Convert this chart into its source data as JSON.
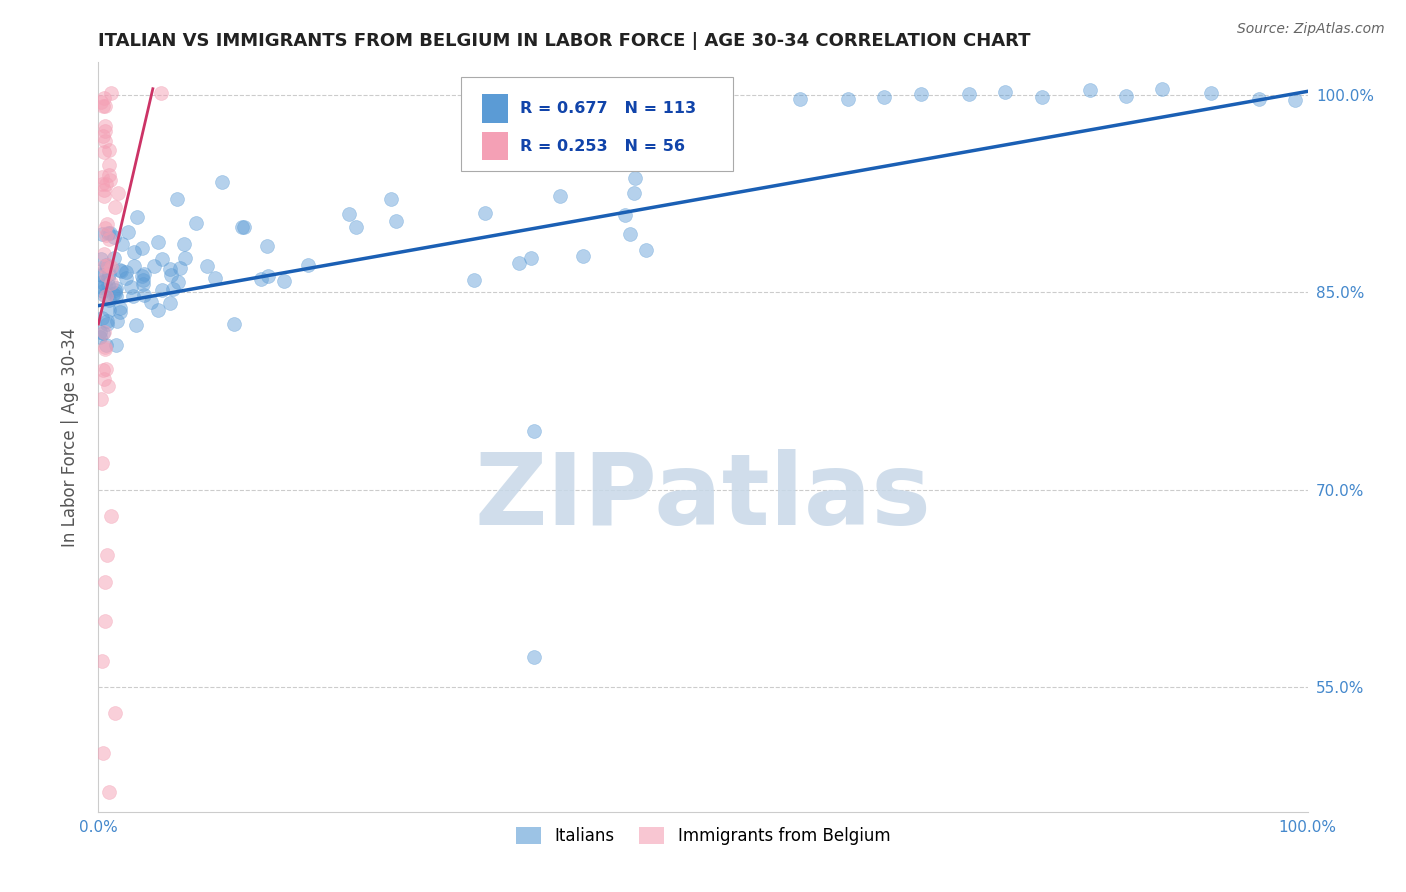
{
  "title": "ITALIAN VS IMMIGRANTS FROM BELGIUM IN LABOR FORCE | AGE 30-34 CORRELATION CHART",
  "source": "Source: ZipAtlas.com",
  "ylabel": "In Labor Force | Age 30-34",
  "xlim": [
    0.0,
    1.0
  ],
  "ylim": [
    0.455,
    1.025
  ],
  "yticks": [
    0.55,
    0.7,
    0.85,
    1.0
  ],
  "ytick_labels": [
    "55.0%",
    "70.0%",
    "85.0%",
    "100.0%"
  ],
  "xticks": [
    0.0,
    0.1,
    0.2,
    0.3,
    0.4,
    0.5,
    0.6,
    0.7,
    0.8,
    0.9,
    1.0
  ],
  "xtick_labels": [
    "0.0%",
    "",
    "",
    "",
    "",
    "",
    "",
    "",
    "",
    "",
    "100.0%"
  ],
  "blue_color": "#5b9bd5",
  "pink_color": "#f4a0b5",
  "blue_line_color": "#1a5fb4",
  "pink_line_color": "#cc3366",
  "blue_R": 0.677,
  "blue_N": 113,
  "pink_R": 0.253,
  "pink_N": 56,
  "watermark": "ZIPatlas",
  "watermark_color": "#c8d8e8",
  "legend_italians": "Italians",
  "legend_immigrants": "Immigrants from Belgium",
  "background_color": "#ffffff",
  "grid_color": "#cccccc",
  "title_color": "#222222",
  "axis_label_color": "#555555",
  "tick_label_color": "#4488cc",
  "stat_text_color": "#1144aa"
}
